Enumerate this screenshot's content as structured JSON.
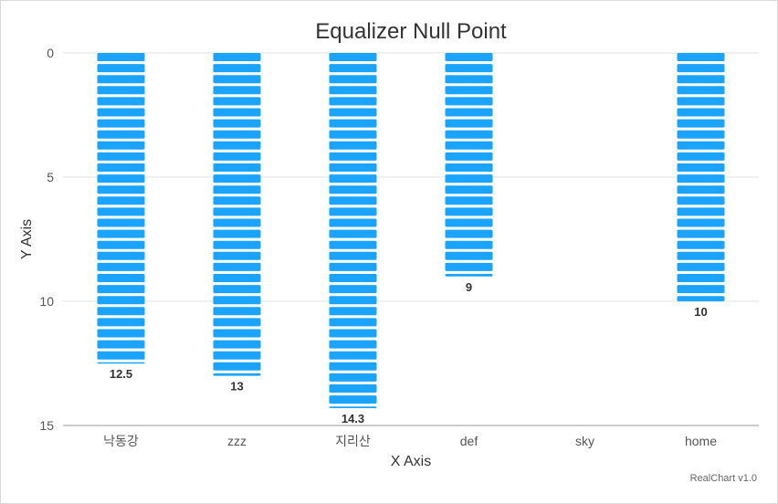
{
  "chart_data": {
    "type": "bar",
    "title": "Equalizer Null Point",
    "xlabel": "X Axis",
    "ylabel": "Y Axis",
    "categories": [
      "낙동강",
      "zzz",
      "지리산",
      "def",
      "sky",
      "home"
    ],
    "values": [
      12.5,
      13,
      14.3,
      9,
      null,
      10
    ],
    "data_labels": [
      "12.5",
      "13",
      "14.3",
      "9",
      "",
      "10"
    ],
    "ylim": [
      0,
      15
    ],
    "y_reversed": true,
    "y_ticks": [
      0,
      5,
      10,
      15
    ],
    "y_tick_labels": [
      "0",
      "5",
      "10",
      "15"
    ],
    "grid": true,
    "legend": "none",
    "bar_style": "segmented",
    "colors": {
      "bar": "#1aa3ff",
      "grid": "#e0e0e0",
      "axis": "#cccccc"
    }
  },
  "credit": "RealChart v1.0"
}
